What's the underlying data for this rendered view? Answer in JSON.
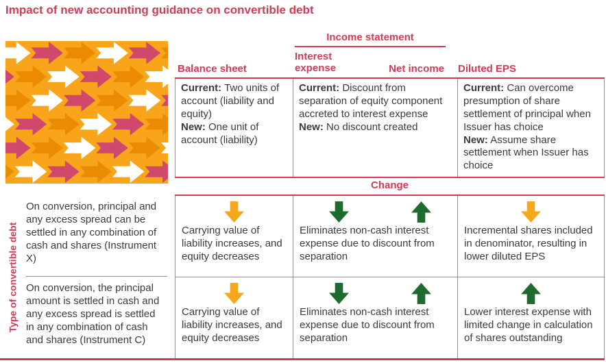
{
  "title": "Impact of new accounting guidance on convertible debt",
  "colors": {
    "rose": "#d33a54",
    "amber_arrow": "#f5a81c",
    "green_arrow": "#1e6b2f",
    "body_text": "#3a3a3a",
    "grid_gray": "#919191"
  },
  "header": {
    "income_statement_label": "Income statement",
    "balance_sheet_label": "Balance sheet",
    "interest_expense_label": "Interest expense",
    "net_income_label": "Net income",
    "diluted_eps_label": "Diluted EPS"
  },
  "impact": {
    "balance_sheet": {
      "current_label": "Current:",
      "current_text": "Two units of account (liability and equity)",
      "new_label": "New:",
      "new_text": "One unit of account (liability)"
    },
    "income_statement": {
      "current_label": "Current:",
      "current_text": "Discount from separation of equity component accreted to interest expense",
      "new_label": "New:",
      "new_text": "No discount created"
    },
    "diluted_eps": {
      "current_label": "Current:",
      "current_text": "Can overcome presumption of share settlement of principal when Issuer has choice",
      "new_label": "New:",
      "new_text": "Assume share settlement when Issuer has choice"
    }
  },
  "change": {
    "label": "Change",
    "rows": [
      {
        "type_description": "On conversion, principal and any excess spread can be settled in any combination of cash and shares (Instrument X)",
        "balance_sheet": {
          "arrows": [
            "decrease-amber"
          ],
          "text": "Carrying value of liability increases, and equity decreases"
        },
        "income_statement": {
          "arrows": [
            "decrease-green",
            "increase-green"
          ],
          "text": "Eliminates non-cash interest expense due to discount from separation"
        },
        "diluted_eps": {
          "arrows": [
            "decrease-amber"
          ],
          "text": "Incremental shares included in denominator, resulting in lower diluted EPS"
        }
      },
      {
        "type_description": "On conversion, the principal amount is settled in cash and any excess spread is settled in any combination of cash and shares (Instrument C)",
        "balance_sheet": {
          "arrows": [
            "decrease-amber"
          ],
          "text": "Carrying value of liability increases, and equity decreases"
        },
        "income_statement": {
          "arrows": [
            "decrease-green",
            "increase-green"
          ],
          "text": "Eliminates non-cash interest expense due to discount from separation"
        },
        "diluted_eps": {
          "arrows": [
            "increase-green"
          ],
          "text": "Lower interest expense with limited change in calculation of shares outstanding"
        }
      }
    ]
  },
  "row_axis_label": "Type of convertible debt",
  "decorative_pattern": {
    "name": "right-arrow-tessellation",
    "background": "#f9a51b",
    "arrow_colors": [
      "#ffffff",
      "#d0486b",
      "#eb8c00"
    ]
  },
  "chart_data": {
    "type": "table",
    "title": "Impact of new accounting guidance on convertible debt",
    "columns": [
      "Balance sheet",
      "Income statement - Interest expense",
      "Income statement - Net income",
      "Diluted EPS"
    ],
    "accounting_impact": {
      "Balance sheet": "Current: Two units of account (liability and equity) | New: One unit of account (liability)",
      "Income statement": "Current: Discount from separation of equity component accreted to interest expense | New: No discount created",
      "Diluted EPS": "Current: Can overcome presumption of share settlement of principal when Issuer has choice | New: Assume share settlement when Issuer has choice"
    },
    "change_by_instrument": [
      {
        "instrument": "Instrument X",
        "description": "On conversion, principal and any excess spread can be settled in any combination of cash and shares (Instrument X)",
        "balance_sheet_change": {
          "direction": "down",
          "text": "Carrying value of liability increases, and equity decreases"
        },
        "interest_expense_change": "down",
        "net_income_change": "up",
        "income_statement_text": "Eliminates non-cash interest expense due to discount from separation",
        "diluted_eps_change": {
          "direction": "down",
          "text": "Incremental shares included in denominator, resulting in lower diluted EPS"
        }
      },
      {
        "instrument": "Instrument C",
        "description": "On conversion, the principal amount is settled in cash and any excess spread is settled in any combination of cash and shares (Instrument C)",
        "balance_sheet_change": {
          "direction": "down",
          "text": "Carrying value of liability increases, and equity decreases"
        },
        "interest_expense_change": "down",
        "net_income_change": "up",
        "income_statement_text": "Eliminates non-cash interest expense due to discount from separation",
        "diluted_eps_change": {
          "direction": "up",
          "text": "Lower interest expense with limited change in calculation of shares outstanding"
        }
      }
    ]
  }
}
